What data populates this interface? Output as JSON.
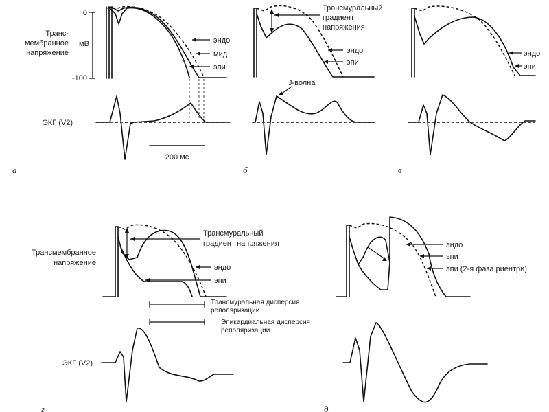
{
  "labels": {
    "tm_a_1": "Транс-",
    "tm_a_2": "мембранное",
    "tm_a_3": "напряжение",
    "unit_mv": "мВ",
    "tick_0": "0",
    "tick_m100": "-100",
    "ecg_a": "ЭКГ (V2)",
    "ecg_g": "ЭКГ (V2)",
    "scale": "200 мс",
    "endo": "эндо",
    "mid": "мид",
    "epi": "эпи",
    "grad_b_1": "Трансмуральный",
    "grad_b_2": "градиент",
    "grad_b_3": "напряжения",
    "jwave": "J-волна",
    "tm_g_1": "Трансмембранное",
    "tm_g_2": "напряжение",
    "grad_g_1": "Трансмуральный",
    "grad_g_2": "градиент напряжения",
    "tdr_1": "Трансмуральная дисперсия",
    "tdr_2": "реполяризации",
    "edr_1": "Эпикардиальная дисперсия",
    "edr_2": "реполяризации",
    "epi_reentry": "эпи (2-я фаза риентри)"
  },
  "panels": [
    "а",
    "б",
    "в",
    "г",
    "д"
  ]
}
